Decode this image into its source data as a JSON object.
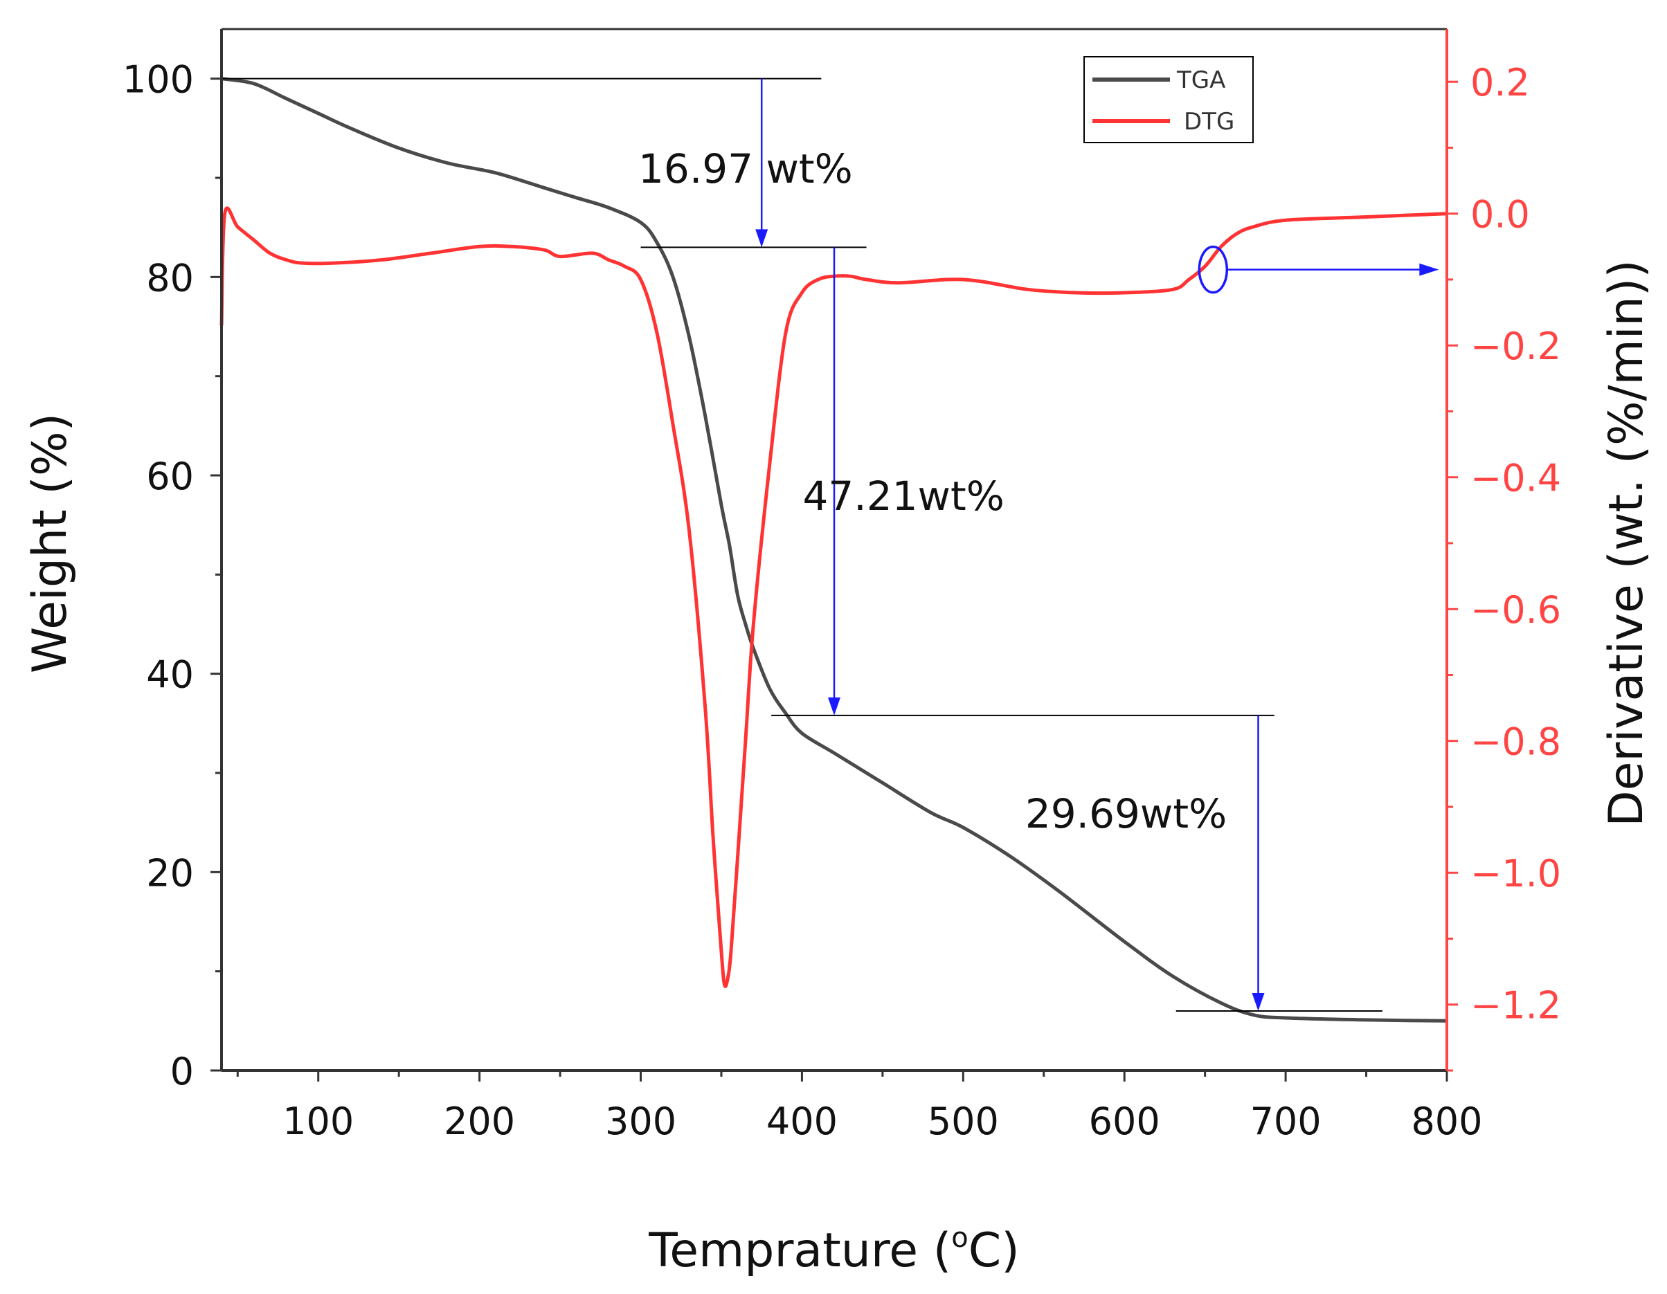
{
  "chart_data": {
    "type": "line",
    "xlabel": "Temprature (",
    "xlabel_super": "o",
    "xlabel_tail": "C)",
    "ylabel_left": "Weight (%)",
    "ylabel_right": "Derivative (wt. (%/min))",
    "xlim": [
      40,
      800
    ],
    "ylim_left": [
      0,
      105
    ],
    "ylim_right": [
      -1.3,
      0.28
    ],
    "x_ticks": [
      100,
      200,
      300,
      400,
      500,
      600,
      700,
      800
    ],
    "y_left_ticks": [
      0,
      20,
      40,
      60,
      80,
      100
    ],
    "y_right_ticks": [
      0.2,
      0.0,
      -0.2,
      -0.4,
      -0.6,
      -0.8,
      -1.0,
      -1.2
    ],
    "y_right_tick_labels": [
      "0.2",
      "0.0",
      "−0.2",
      "−0.4",
      "−0.6",
      "−0.8",
      "−1.0",
      "−1.2"
    ],
    "colors": {
      "tga": "#4a4a4a",
      "dtg": "#ff3333",
      "annotation": "#1a1aff",
      "axis_right": "#ff4444"
    },
    "legend": [
      {
        "name": "TGA",
        "color": "#4a4a4a"
      },
      {
        "name": "DTG",
        "color": "#ff3333"
      }
    ],
    "series": [
      {
        "name": "TGA",
        "axis": "left",
        "x": [
          40,
          60,
          80,
          100,
          120,
          150,
          180,
          210,
          240,
          260,
          280,
          300,
          310,
          320,
          330,
          340,
          350,
          355,
          360,
          365,
          370,
          380,
          390,
          400,
          420,
          450,
          480,
          500,
          530,
          560,
          600,
          630,
          660,
          680,
          700,
          750,
          800
        ],
        "y": [
          100,
          99.5,
          98,
          96.5,
          95,
          93,
          91.5,
          90.5,
          89,
          88,
          87,
          85.5,
          83.5,
          80,
          74,
          66,
          57,
          53,
          48,
          45,
          42.5,
          38.5,
          36,
          34,
          32,
          29,
          26,
          24.5,
          21.5,
          18,
          13,
          9.5,
          6.8,
          5.6,
          5.3,
          5.1,
          5.0
        ]
      },
      {
        "name": "DTG",
        "axis": "right",
        "x": [
          40,
          42,
          50,
          60,
          70,
          80,
          90,
          110,
          140,
          170,
          200,
          220,
          240,
          250,
          270,
          280,
          290,
          300,
          310,
          320,
          330,
          340,
          345,
          350,
          352,
          354,
          356,
          360,
          365,
          370,
          380,
          390,
          400,
          410,
          420,
          430,
          440,
          460,
          500,
          540,
          570,
          600,
          630,
          640,
          650,
          660,
          670,
          680,
          700,
          750,
          800
        ],
        "y": [
          -0.17,
          0.0,
          -0.02,
          -0.04,
          -0.06,
          -0.07,
          -0.075,
          -0.075,
          -0.07,
          -0.06,
          -0.05,
          -0.05,
          -0.055,
          -0.065,
          -0.06,
          -0.07,
          -0.08,
          -0.1,
          -0.18,
          -0.32,
          -0.48,
          -0.75,
          -0.95,
          -1.12,
          -1.17,
          -1.16,
          -1.12,
          -0.98,
          -0.8,
          -0.62,
          -0.38,
          -0.18,
          -0.12,
          -0.1,
          -0.095,
          -0.095,
          -0.1,
          -0.105,
          -0.1,
          -0.115,
          -0.12,
          -0.12,
          -0.115,
          -0.1,
          -0.08,
          -0.05,
          -0.03,
          -0.02,
          -0.01,
          -0.005,
          0.0
        ]
      }
    ],
    "annotations": [
      {
        "label": "16.97 wt%"
      },
      {
        "label": "47.21wt%"
      },
      {
        "label": "29.69wt%"
      }
    ]
  }
}
